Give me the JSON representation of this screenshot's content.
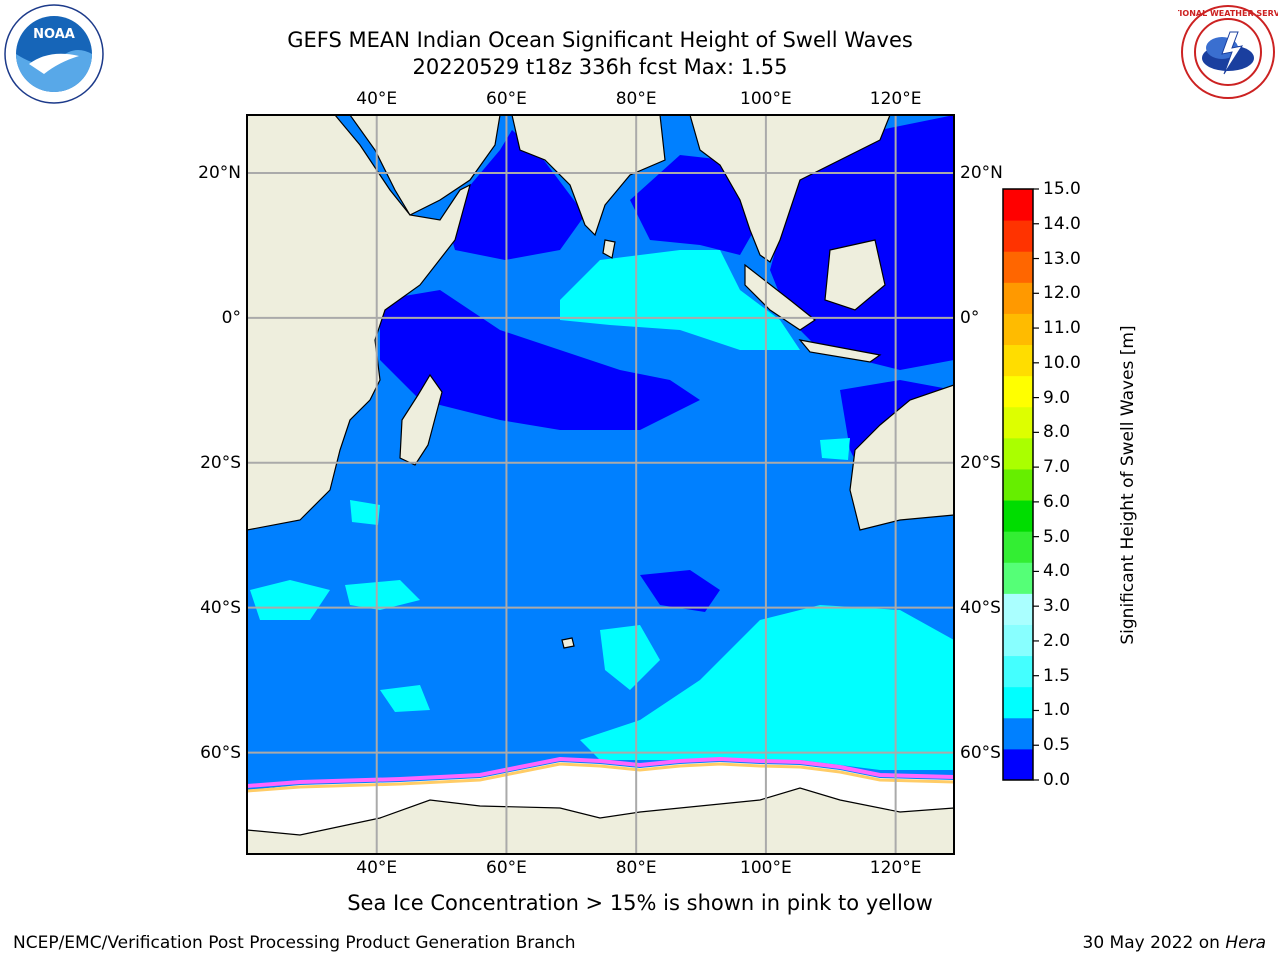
{
  "header": {
    "title_line1": "GEFS MEAN Indian Ocean Significant Height of Swell Waves",
    "title_line2": "20220529 t18z 336h fcst   Max: 1.55"
  },
  "logos": {
    "left": {
      "name": "noaa-logo",
      "text": "NOAA"
    },
    "right": {
      "name": "nws-logo",
      "text": "NATIONAL WEATHER SERVICE"
    }
  },
  "map": {
    "lon_ticks": [
      "40°E",
      "60°E",
      "80°E",
      "100°E",
      "120°E"
    ],
    "lat_ticks": [
      "20°N",
      "0°",
      "20°S",
      "40°S",
      "60°S"
    ],
    "lon_range": [
      20,
      129
    ],
    "lat_range": [
      -74,
      28
    ],
    "colors": {
      "land": "#eeeedd",
      "ice": "#ffffff",
      "ocean_light": "#0080ff",
      "ocean_dark": "#0000ff",
      "ocean_cyan": "#00ffff",
      "grid": "#aaaaaa",
      "ice_edge": [
        "#ff66ff",
        "#ff9999",
        "#ffcc66"
      ]
    }
  },
  "colorbar": {
    "label": "Significant Height of Swell Waves [m]",
    "ticks": [
      "15.0",
      "14.0",
      "13.0",
      "12.0",
      "11.0",
      "10.0",
      "9.0",
      "8.0",
      "7.0",
      "6.0",
      "5.0",
      "4.0",
      "3.0",
      "2.0",
      "1.5",
      "1.0",
      "0.5",
      "0.0"
    ],
    "colors": [
      "#0000ff",
      "#0080ff",
      "#00ffff",
      "#44ffff",
      "#88ffff",
      "#aaffff",
      "#55ff77",
      "#33ee33",
      "#00dd00",
      "#66ee00",
      "#aaff00",
      "#ddff00",
      "#ffff00",
      "#ffdd00",
      "#ffbb00",
      "#ff9900",
      "#ff6600",
      "#ff3300",
      "#ff0000"
    ]
  },
  "caption": "Sea Ice Concentration > 15% is shown in pink to yellow",
  "footer": {
    "left": "NCEP/EMC/Verification Post Processing Product Generation Branch",
    "right_date": "30 May 2022 on ",
    "right_host": "Hera"
  }
}
